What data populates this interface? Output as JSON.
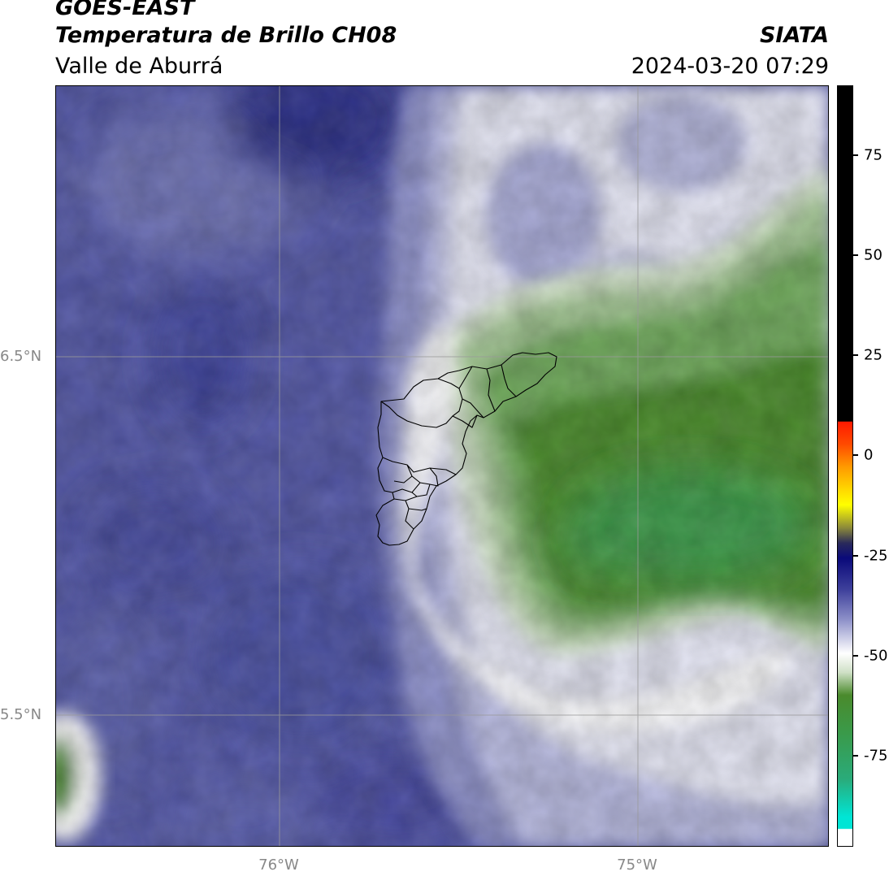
{
  "header": {
    "satellite": "GOES-EAST",
    "product": "Temperatura de Brillo CH08",
    "region": "Valle de Aburrá",
    "organization": "SIATA",
    "datetime": "2024-03-20 07:29"
  },
  "map": {
    "lat_labels": [
      "6.5°N",
      "5.5°N"
    ],
    "lon_labels": [
      "76°W",
      "75°W"
    ]
  },
  "colorbar": {
    "tick_labels": [
      "75",
      "50",
      "25",
      "0",
      "-25",
      "-50",
      "-75"
    ],
    "colors": {
      "cold_green": "#3a9a4a",
      "green": "#4a8a2c",
      "white": "#ffffff",
      "blue": "#4e54a4",
      "dark_blue": "#262a80",
      "red": "#ff1a00",
      "yellow": "#ffff00",
      "cyan": "#00e5d5",
      "black": "#000000"
    }
  }
}
